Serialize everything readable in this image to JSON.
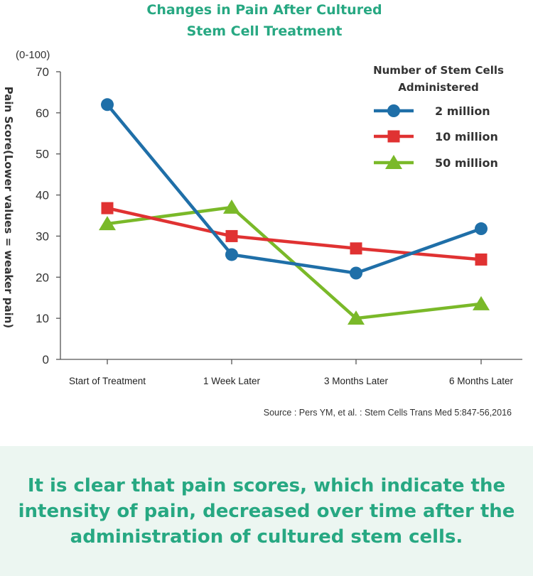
{
  "chart_data": {
    "type": "line",
    "title_lines": [
      "Changes in Pain After Cultured",
      "Stem Cell Treatment"
    ],
    "ylabel": "Pain Score(Lower values = weaker pain)",
    "yunit": "(0-100)",
    "ylim": [
      0,
      70
    ],
    "yticks": [
      0,
      10,
      20,
      30,
      40,
      50,
      60,
      70
    ],
    "categories": [
      "Start of Treatment",
      "1 Week Later",
      "3 Months Later",
      "6 Months Later"
    ],
    "legend_title_lines": [
      "Number of Stem Cells",
      "Administered"
    ],
    "series": [
      {
        "name": "2 million",
        "marker": "circle",
        "color": "#1f6fa8",
        "values": [
          62,
          25.5,
          21,
          31.8
        ]
      },
      {
        "name": "10 million",
        "marker": "square",
        "color": "#e03232",
        "values": [
          36.8,
          30,
          27,
          24.3
        ]
      },
      {
        "name": "50  million",
        "marker": "triangle",
        "color": "#7ab929",
        "values": [
          33,
          37,
          10,
          13.5
        ]
      }
    ],
    "source": "Source : Pers YM, et al. : Stem Cells Trans Med 5:847-56,2016"
  },
  "conclusion": "It is clear that pain scores, which indicate the intensity of pain, decreased over time after the administration of cultured stem cells."
}
